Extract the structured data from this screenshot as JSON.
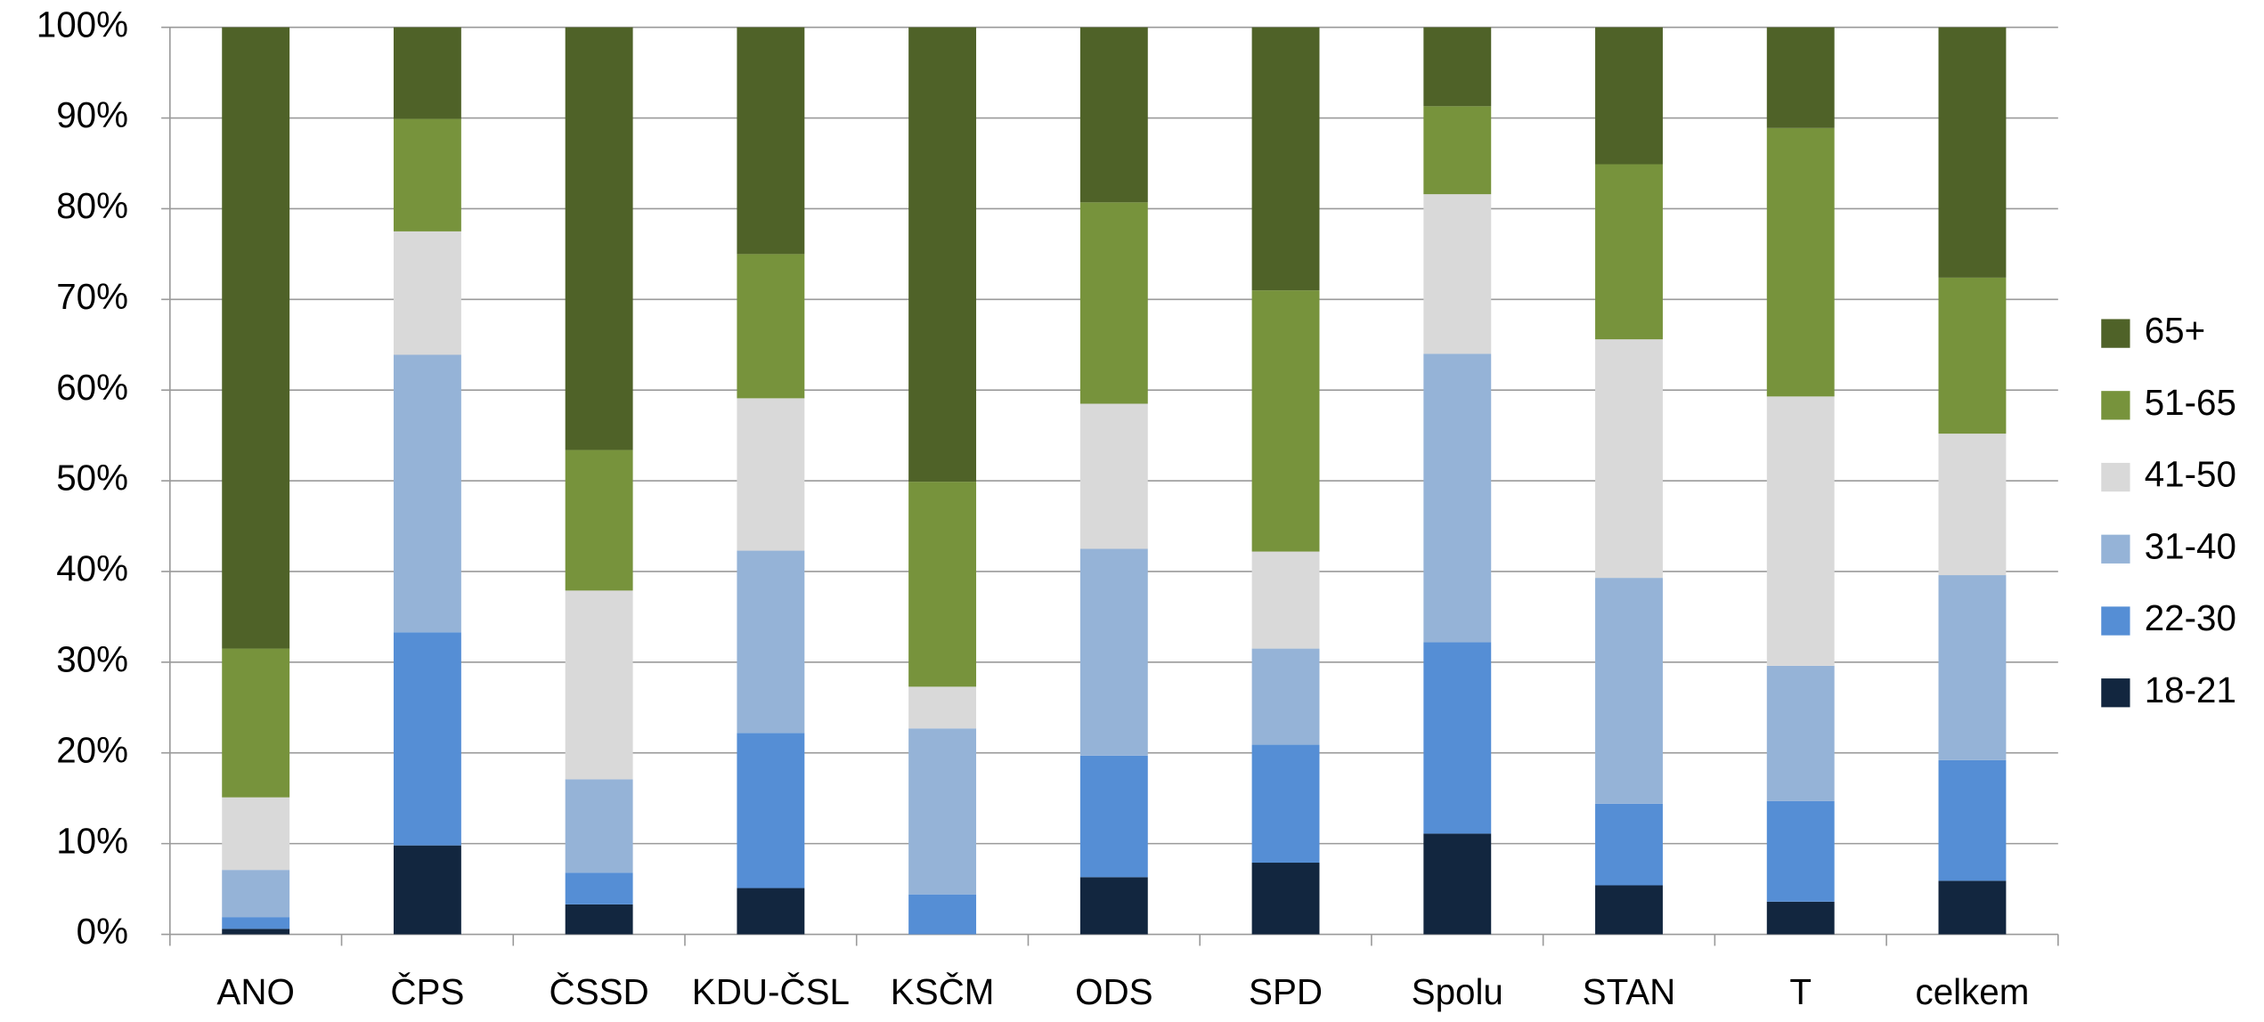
{
  "chart_data": {
    "type": "stacked_bar",
    "categories": [
      "ANO",
      "ČPS",
      "ČSSD",
      "KDU-ČSL",
      "KSČM",
      "ODS",
      "SPD",
      "Spolu",
      "STAN",
      "T",
      "celkem"
    ],
    "series": [
      {
        "name": "18-21",
        "color": "#12263f",
        "values": [
          0.6,
          9.8,
          3.3,
          5.1,
          0,
          6.3,
          7.9,
          11.1,
          5.4,
          3.6,
          5.9
        ]
      },
      {
        "name": "22-30",
        "color": "#558ed5",
        "values": [
          1.3,
          23.5,
          3.5,
          17.1,
          4.4,
          13.4,
          13.0,
          21.1,
          9.0,
          11.1,
          13.3
        ]
      },
      {
        "name": "31-40",
        "color": "#95b3d7",
        "values": [
          5.2,
          30.6,
          10.3,
          20.1,
          18.3,
          22.8,
          10.6,
          31.8,
          24.9,
          14.9,
          20.4
        ]
      },
      {
        "name": "41-50",
        "color": "#d9d9d9",
        "values": [
          8.0,
          13.6,
          20.8,
          16.8,
          4.6,
          16.0,
          10.7,
          17.6,
          26.3,
          29.7,
          15.6
        ]
      },
      {
        "name": "51-65",
        "color": "#77933c",
        "values": [
          16.4,
          12.4,
          15.5,
          15.9,
          22.6,
          22.2,
          28.8,
          9.7,
          19.3,
          29.6,
          17.2
        ]
      },
      {
        "name": "65+",
        "color": "#4f6228",
        "values": [
          68.5,
          10.1,
          46.6,
          25.0,
          50.1,
          19.3,
          29.0,
          8.7,
          15.1,
          11.1,
          27.6
        ]
      }
    ],
    "ylim": [
      0,
      100
    ],
    "yticks": [
      {
        "value": 0,
        "label": "0%"
      },
      {
        "value": 10,
        "label": "10%"
      },
      {
        "value": 20,
        "label": "20%"
      },
      {
        "value": 30,
        "label": "30%"
      },
      {
        "value": 40,
        "label": "40%"
      },
      {
        "value": 50,
        "label": "50%"
      },
      {
        "value": 60,
        "label": "60%"
      },
      {
        "value": 70,
        "label": "70%"
      },
      {
        "value": 80,
        "label": "80%"
      },
      {
        "value": 90,
        "label": "90%"
      },
      {
        "value": 100,
        "label": "100%"
      }
    ],
    "grid": true,
    "legend": "right"
  }
}
